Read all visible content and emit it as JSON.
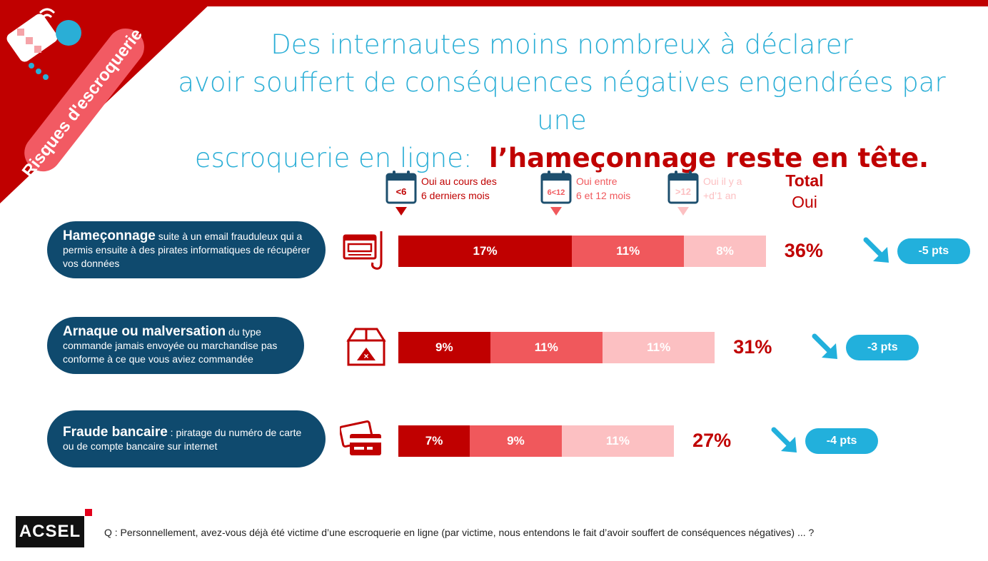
{
  "corner_badge": {
    "label": "Risques d'escroquerie"
  },
  "title": {
    "line1": "Des internautes moins nombreux à déclarer",
    "line2": "avoir souffert de conséquences négatives engendrées par une",
    "line3": "escroquerie en ligne:",
    "highlight": "l’hameçonnage reste en tête."
  },
  "legend": [
    {
      "tag": "<6",
      "label_line1": "Oui au cours des",
      "label_line2": "6 derniers mois",
      "color": "#c00000"
    },
    {
      "tag": "6<12",
      "label_line1": "Oui entre",
      "label_line2": "6 et 12 mois",
      "color": "#f0585c"
    },
    {
      "tag": ">12",
      "label_line1": "Oui il y a",
      "label_line2": "+d’1 an",
      "color": "#fcc0c2"
    }
  ],
  "total_header": {
    "line1": "Total",
    "line2": "Oui"
  },
  "rows": [
    {
      "title": "Hameçonnage",
      "desc": "suite à un email frauduleux qui a permis ensuite à des pirates informatiques de récupérer vos données",
      "icon": "phishing-hook-icon",
      "total": "36%",
      "delta": "-5 pts"
    },
    {
      "title": "Arnaque ou malversation",
      "desc": "du type commande jamais envoyée ou marchandise pas conforme à ce que vous aviez commandée",
      "icon": "damaged-package-icon",
      "total": "31%",
      "delta": "-3 pts"
    },
    {
      "title": "Fraude bancaire",
      "desc": ": piratage du numéro de carte  ou de compte bancaire sur internet",
      "icon": "credit-cards-icon",
      "total": "27%",
      "delta": "-4 pts"
    }
  ],
  "chart_data": {
    "type": "bar",
    "orientation": "horizontal",
    "stacked": true,
    "unit": "%",
    "categories": [
      "Hameçonnage",
      "Arnaque ou malversation",
      "Fraude bancaire"
    ],
    "series": [
      {
        "name": "Oui au cours des 6 derniers mois",
        "values": [
          17,
          9,
          7
        ],
        "labels": [
          "17%",
          "9%",
          "7%"
        ],
        "color": "#c00000"
      },
      {
        "name": "Oui entre 6 et 12 mois",
        "values": [
          11,
          11,
          9
        ],
        "labels": [
          "11%",
          "11%",
          "9%"
        ],
        "color": "#f0585c"
      },
      {
        "name": "Oui il y a +d’1 an",
        "values": [
          8,
          11,
          11
        ],
        "labels": [
          "8%",
          "11%",
          "11%"
        ],
        "color": "#fcc0c2"
      }
    ],
    "totals": [
      36,
      31,
      27
    ],
    "changes_pts": [
      -5,
      -3,
      -4
    ]
  },
  "footer": {
    "logo": "ACSEL",
    "question": "Q : Personnellement, avez-vous déjà été victime d’une escroquerie en ligne (par victime, nous entendons le fait d’avoir souffert de conséquences négatives) ... ?"
  },
  "colors": {
    "accent_red": "#c00000",
    "title_blue": "#2aaed6",
    "label_navy": "#0f4a6e",
    "delta_blue": "#22b0dc"
  }
}
